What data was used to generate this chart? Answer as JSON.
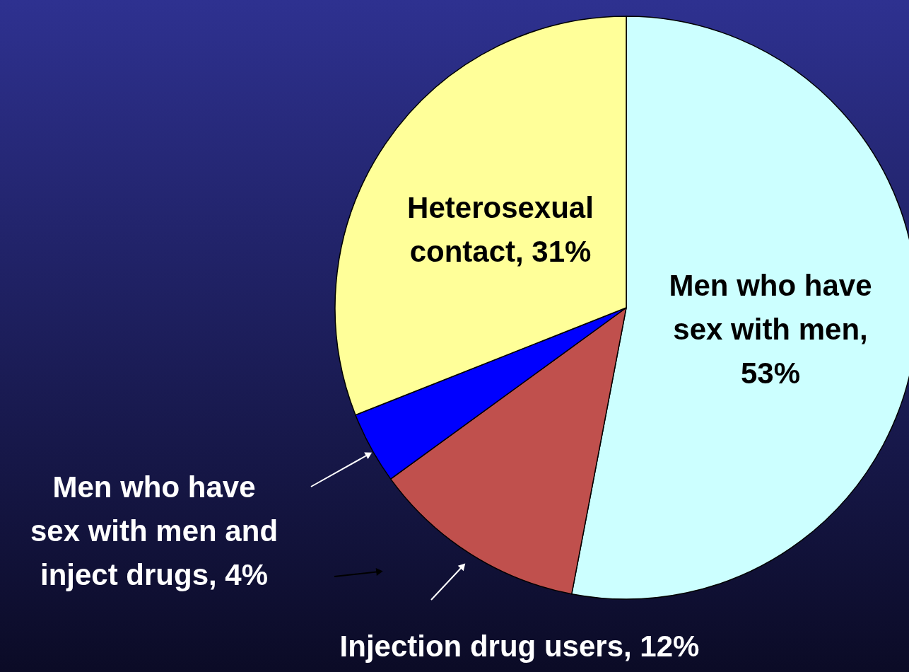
{
  "chart_data": {
    "type": "pie",
    "categories": [
      "Men who have sex with men, 53%",
      "Injection drug users, 12%",
      "Men who have sex with men and inject drugs, 4%",
      "Heterosexual contact, 31%"
    ],
    "values": [
      53,
      12,
      4,
      31
    ],
    "colors": [
      "#ccffff",
      "#c0504d",
      "#0000ff",
      "#ffff99"
    ]
  }
}
